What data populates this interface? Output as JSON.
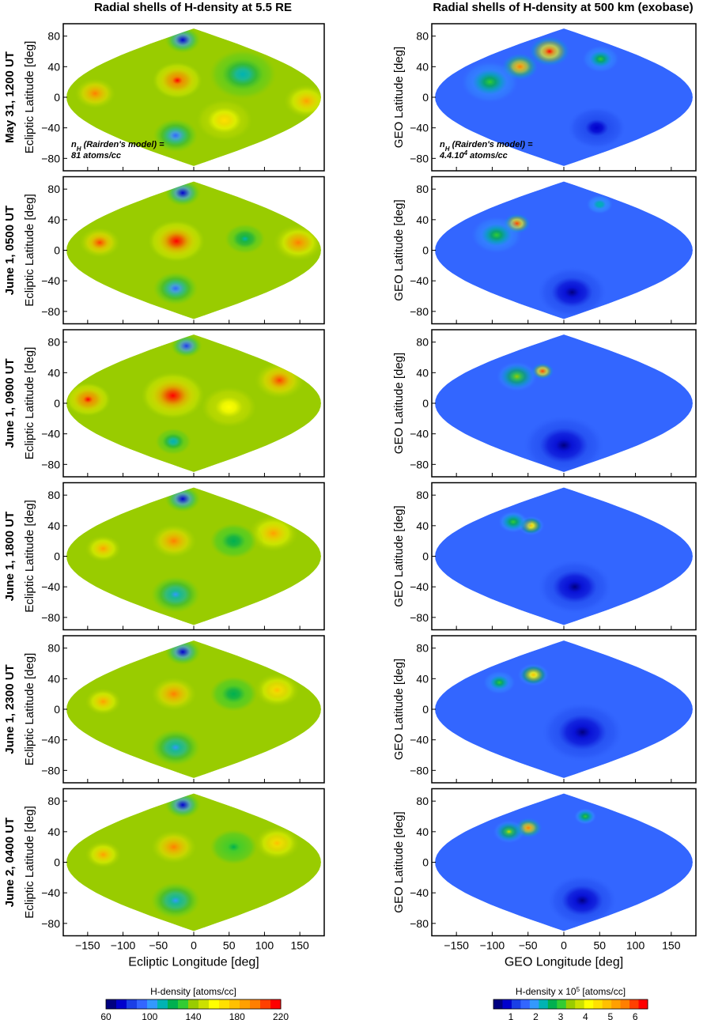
{
  "figure": {
    "column_titles": [
      "Radial shells of H-density at 5.5 RE",
      "Radial shells of H-density at 500 km (exobase)"
    ],
    "row_labels": [
      "May 31, 1200 UT",
      "June 1, 0500 UT",
      "June 1, 0900 UT",
      "June 1, 1800 UT",
      "June 1, 2300 UT",
      "June 2, 0400 UT"
    ],
    "annotations": {
      "left": {
        "prefix": "n",
        "sub": "H",
        "model": " (Rairden's model) =",
        "line2": "81 atoms/cc"
      },
      "right": {
        "prefix": "n",
        "sub": "H",
        "model": " (Rairden's model) =",
        "line2_base": "4.4.10",
        "line2_sup": "4",
        "line2_tail": " atoms/cc"
      }
    }
  },
  "chart_data": [
    {
      "type": "heatmap",
      "projection": "sinusoidal",
      "panel": "left",
      "title": "Radial shells of H-density at 5.5 RE",
      "xlabel": "Ecliptic Longitude [deg]",
      "ylabel": "Ecliptic Latitude [deg]",
      "xlim": [
        -180,
        180
      ],
      "ylim": [
        -90,
        90
      ],
      "x_ticks": [
        -150,
        -100,
        -50,
        0,
        50,
        100,
        150
      ],
      "y_ticks": [
        80,
        40,
        0,
        -40,
        -80
      ],
      "colorbar": {
        "label": "H-density [atoms/cc]",
        "range": [
          60,
          220
        ],
        "ticks": [
          60,
          100,
          140,
          180,
          220
        ],
        "colors": [
          "#000080",
          "#0000cd",
          "#1a3fe6",
          "#3366ff",
          "#3399ff",
          "#00b3b3",
          "#00b050",
          "#33cc33",
          "#99cc00",
          "#cce000",
          "#ffff00",
          "#ffe000",
          "#ffc000",
          "#ffa000",
          "#ff7f00",
          "#ff4000",
          "#ff0000"
        ]
      },
      "background_value": 140,
      "rows": [
        {
          "time": "May 31, 1200 UT",
          "features": [
            {
              "lon": -25,
              "lat": 22,
              "value": 215,
              "r": 22
            },
            {
              "lon": -140,
              "lat": 5,
              "value": 200,
              "r": 18
            },
            {
              "lon": 160,
              "lat": -5,
              "value": 190,
              "r": 20
            },
            {
              "lon": -60,
              "lat": 75,
              "value": 70,
              "r": 16
            },
            {
              "lon": -40,
              "lat": -50,
              "value": 95,
              "r": 20
            },
            {
              "lon": 80,
              "lat": 30,
              "value": 110,
              "r": 30
            },
            {
              "lon": 50,
              "lat": -30,
              "value": 170,
              "r": 25
            }
          ]
        },
        {
          "time": "June 1, 0500 UT",
          "features": [
            {
              "lon": -25,
              "lat": 12,
              "value": 220,
              "r": 25
            },
            {
              "lon": -135,
              "lat": 10,
              "value": 205,
              "r": 18
            },
            {
              "lon": 150,
              "lat": 10,
              "value": 195,
              "r": 22
            },
            {
              "lon": -60,
              "lat": 75,
              "value": 70,
              "r": 16
            },
            {
              "lon": -40,
              "lat": -50,
              "value": 95,
              "r": 20
            },
            {
              "lon": 75,
              "lat": 15,
              "value": 115,
              "r": 18
            }
          ]
        },
        {
          "time": "June 1, 0900 UT",
          "features": [
            {
              "lon": -30,
              "lat": 10,
              "value": 220,
              "r": 28
            },
            {
              "lon": -150,
              "lat": 5,
              "value": 215,
              "r": 20
            },
            {
              "lon": 140,
              "lat": 30,
              "value": 210,
              "r": 22
            },
            {
              "lon": -40,
              "lat": 75,
              "value": 80,
              "r": 14
            },
            {
              "lon": -45,
              "lat": -50,
              "value": 110,
              "r": 16
            },
            {
              "lon": 50,
              "lat": -5,
              "value": 160,
              "r": 30
            }
          ]
        },
        {
          "time": "June 1, 1800 UT",
          "features": [
            {
              "lon": -30,
              "lat": 20,
              "value": 200,
              "r": 20
            },
            {
              "lon": -130,
              "lat": 10,
              "value": 190,
              "r": 16
            },
            {
              "lon": 130,
              "lat": 30,
              "value": 190,
              "r": 22
            },
            {
              "lon": -60,
              "lat": 75,
              "value": 70,
              "r": 16
            },
            {
              "lon": -40,
              "lat": -50,
              "value": 100,
              "r": 22
            },
            {
              "lon": 60,
              "lat": 20,
              "value": 120,
              "r": 26
            }
          ]
        },
        {
          "time": "June 1, 2300 UT",
          "features": [
            {
              "lon": -30,
              "lat": 20,
              "value": 200,
              "r": 20
            },
            {
              "lon": -130,
              "lat": 10,
              "value": 190,
              "r": 16
            },
            {
              "lon": 130,
              "lat": 25,
              "value": 180,
              "r": 20
            },
            {
              "lon": -60,
              "lat": 75,
              "value": 70,
              "r": 16
            },
            {
              "lon": -40,
              "lat": -50,
              "value": 100,
              "r": 22
            },
            {
              "lon": 60,
              "lat": 20,
              "value": 120,
              "r": 26
            }
          ]
        },
        {
          "time": "June 2, 0400 UT",
          "features": [
            {
              "lon": -30,
              "lat": 20,
              "value": 200,
              "r": 20
            },
            {
              "lon": -130,
              "lat": 10,
              "value": 190,
              "r": 16
            },
            {
              "lon": 130,
              "lat": 25,
              "value": 180,
              "r": 20
            },
            {
              "lon": -60,
              "lat": 75,
              "value": 70,
              "r": 16
            },
            {
              "lon": -40,
              "lat": -50,
              "value": 100,
              "r": 22
            },
            {
              "lon": 60,
              "lat": 20,
              "value": 125,
              "r": 26
            }
          ]
        }
      ]
    },
    {
      "type": "heatmap",
      "projection": "sinusoidal",
      "panel": "right",
      "title": "Radial shells of H-density at 500 km (exobase)",
      "xlabel": "GEO Longitude [deg]",
      "ylabel": "GEO Latitude [deg]",
      "xlim": [
        -180,
        180
      ],
      "ylim": [
        -90,
        90
      ],
      "x_ticks": [
        -150,
        -100,
        -50,
        0,
        50,
        100,
        150
      ],
      "y_ticks": [
        80,
        40,
        0,
        -40,
        -80
      ],
      "colorbar": {
        "label": "H-density x 10",
        "label_sup": "5",
        "label_tail": " [atoms/cc]",
        "range": [
          0.3,
          6.5
        ],
        "ticks": [
          1,
          2,
          3,
          4,
          5,
          6
        ],
        "colors": [
          "#000080",
          "#0000cd",
          "#1a3fe6",
          "#3366ff",
          "#3399ff",
          "#00b3b3",
          "#00b050",
          "#33cc33",
          "#99cc00",
          "#cce000",
          "#ffff00",
          "#ffe000",
          "#ffc000",
          "#ffa000",
          "#ff7f00",
          "#ff4000",
          "#ff0000"
        ]
      },
      "background_value": 1.4,
      "rows": [
        {
          "time": "May 31, 1200 UT",
          "features": [
            {
              "lon": -40,
              "lat": 60,
              "value": 6.2,
              "r": 18
            },
            {
              "lon": -80,
              "lat": 40,
              "value": 5.5,
              "r": 16
            },
            {
              "lon": -110,
              "lat": 20,
              "value": 3.2,
              "r": 25
            },
            {
              "lon": 80,
              "lat": 50,
              "value": 3.2,
              "r": 16
            },
            {
              "lon": 60,
              "lat": -40,
              "value": 0.8,
              "r": 25
            }
          ]
        },
        {
          "time": "June 1, 0500 UT",
          "features": [
            {
              "lon": -80,
              "lat": 35,
              "value": 6.0,
              "r": 12
            },
            {
              "lon": -100,
              "lat": 20,
              "value": 3.2,
              "r": 22
            },
            {
              "lon": 100,
              "lat": 60,
              "value": 2.4,
              "r": 14
            },
            {
              "lon": 20,
              "lat": -55,
              "value": 0.5,
              "r": 30
            }
          ]
        },
        {
          "time": "June 1, 0900 UT",
          "features": [
            {
              "lon": -40,
              "lat": 42,
              "value": 6.0,
              "r": 10
            },
            {
              "lon": -80,
              "lat": 35,
              "value": 3.5,
              "r": 18
            },
            {
              "lon": 0,
              "lat": -55,
              "value": 0.5,
              "r": 35
            }
          ]
        },
        {
          "time": "June 1, 1800 UT",
          "features": [
            {
              "lon": -60,
              "lat": 40,
              "value": 4.8,
              "r": 12
            },
            {
              "lon": -100,
              "lat": 45,
              "value": 3.0,
              "r": 16
            },
            {
              "lon": 20,
              "lat": -40,
              "value": 0.5,
              "r": 32
            }
          ]
        },
        {
          "time": "June 1, 2300 UT",
          "features": [
            {
              "lon": -60,
              "lat": 45,
              "value": 4.8,
              "r": 14
            },
            {
              "lon": -110,
              "lat": 35,
              "value": 3.2,
              "r": 14
            },
            {
              "lon": 30,
              "lat": -30,
              "value": 0.5,
              "r": 35
            }
          ]
        },
        {
          "time": "June 2, 0400 UT",
          "features": [
            {
              "lon": -70,
              "lat": 45,
              "value": 5.5,
              "r": 12
            },
            {
              "lon": -100,
              "lat": 40,
              "value": 3.6,
              "r": 14
            },
            {
              "lon": 60,
              "lat": 60,
              "value": 3.0,
              "r": 12
            },
            {
              "lon": 40,
              "lat": -50,
              "value": 0.5,
              "r": 30
            }
          ]
        }
      ]
    }
  ]
}
